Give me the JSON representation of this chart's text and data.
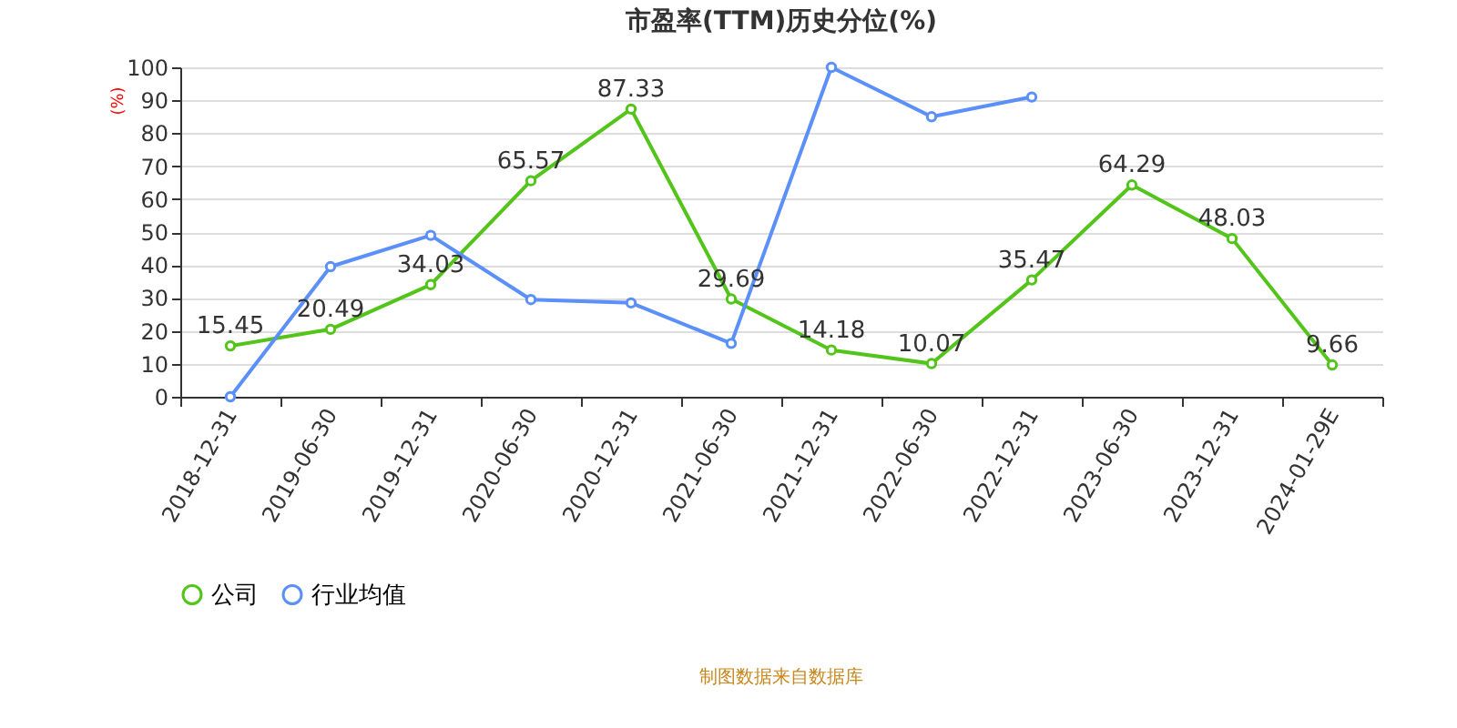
{
  "chart_data": {
    "type": "line",
    "title": "市盈率(TTM)历史分位(%)",
    "ylabel": "(%)",
    "categories": [
      "2018-12-31",
      "2019-06-30",
      "2019-12-31",
      "2020-06-30",
      "2020-12-31",
      "2021-06-30",
      "2021-12-31",
      "2022-06-30",
      "2022-12-31",
      "2023-06-30",
      "2023-12-31",
      "2024-01-29E"
    ],
    "series": [
      {
        "name": "公司",
        "color": "#52c41a",
        "values": [
          15.45,
          20.49,
          34.03,
          65.57,
          87.33,
          29.69,
          14.18,
          10.07,
          35.47,
          64.29,
          48.03,
          9.66
        ],
        "value_labels": [
          "15.45",
          "20.49",
          "34.03",
          "65.57",
          "87.33",
          "29.69",
          "14.18",
          "10.07",
          "35.47",
          "64.29",
          "48.03",
          "9.66"
        ]
      },
      {
        "name": "行业均值",
        "color": "#5b8ff9",
        "values": [
          0,
          39.5,
          49,
          29.5,
          28.5,
          16.2,
          100,
          85,
          91,
          null,
          null,
          null
        ]
      }
    ],
    "ylim": [
      0,
      100
    ],
    "yticks": [
      0,
      10,
      20,
      30,
      40,
      50,
      60,
      70,
      80,
      90,
      100
    ],
    "grid": "y",
    "legend": "bottom",
    "marker": "circle",
    "line_style": "solid",
    "annotations": [
      "制图数据来自数据库"
    ]
  }
}
